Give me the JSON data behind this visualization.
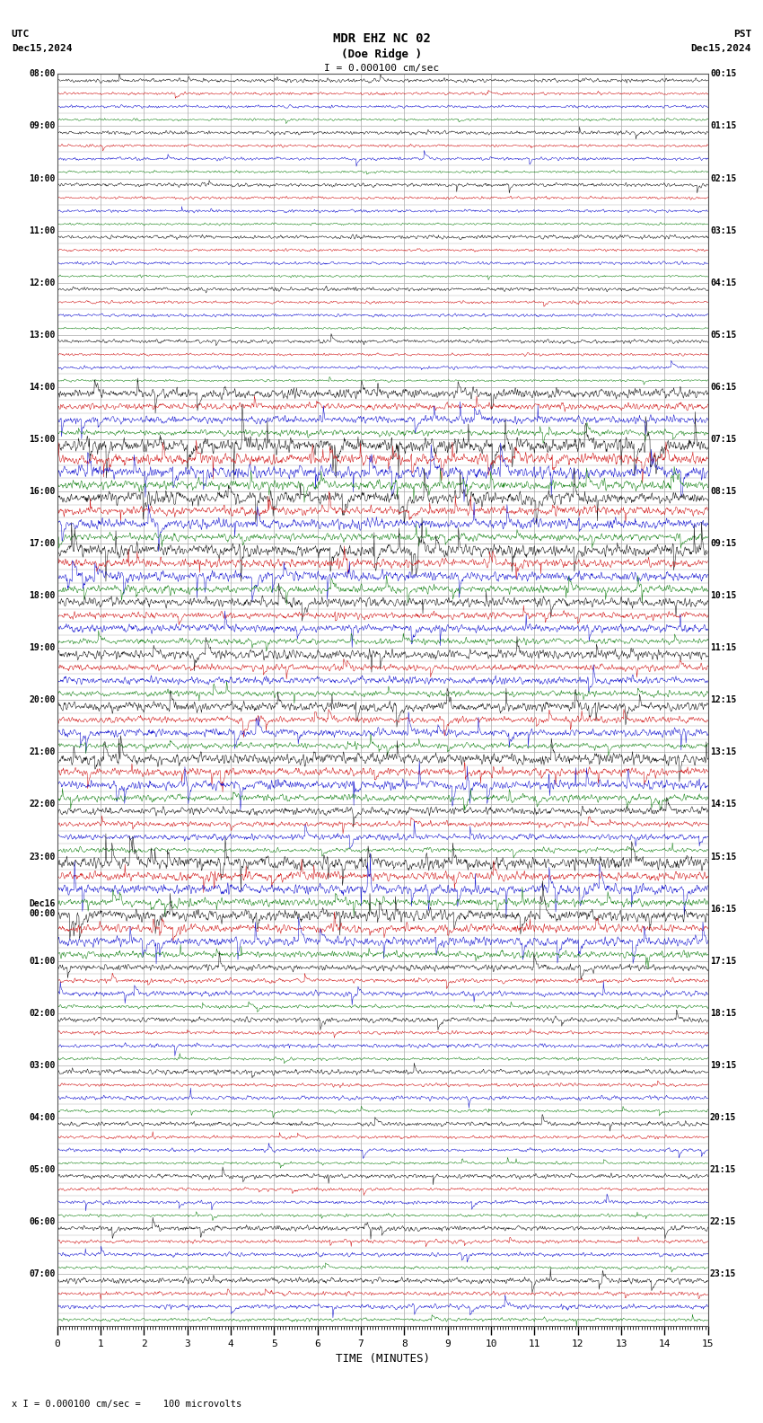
{
  "title_line1": "MDR EHZ NC 02",
  "title_line2": "(Doe Ridge )",
  "scale_text": "I = 0.000100 cm/sec",
  "utc_label": "UTC",
  "utc_date": "Dec15,2024",
  "pst_label": "PST",
  "pst_date": "Dec15,2024",
  "xlabel": "TIME (MINUTES)",
  "footer": "x I = 0.000100 cm/sec =    100 microvolts",
  "bg_color": "#ffffff",
  "grid_color": "#aaaaaa",
  "trace_colors": [
    "#000000",
    "#cc0000",
    "#0000cc",
    "#007700"
  ],
  "left_labels_utc": [
    "08:00",
    "09:00",
    "10:00",
    "11:00",
    "12:00",
    "13:00",
    "14:00",
    "15:00",
    "16:00",
    "17:00",
    "18:00",
    "19:00",
    "20:00",
    "21:00",
    "22:00",
    "23:00",
    "Dec16\n00:00",
    "01:00",
    "02:00",
    "03:00",
    "04:00",
    "05:00",
    "06:00",
    "07:00"
  ],
  "right_labels_pst": [
    "00:15",
    "01:15",
    "02:15",
    "03:15",
    "04:15",
    "05:15",
    "06:15",
    "07:15",
    "08:15",
    "09:15",
    "10:15",
    "11:15",
    "12:15",
    "13:15",
    "14:15",
    "15:15",
    "16:15",
    "17:15",
    "18:15",
    "19:15",
    "20:15",
    "21:15",
    "22:15",
    "23:15"
  ],
  "num_rows": 24,
  "traces_per_row": 4,
  "minutes": 15,
  "samples_per_minute": 100,
  "base_noise": 0.07,
  "amplitude_scale": 0.18
}
